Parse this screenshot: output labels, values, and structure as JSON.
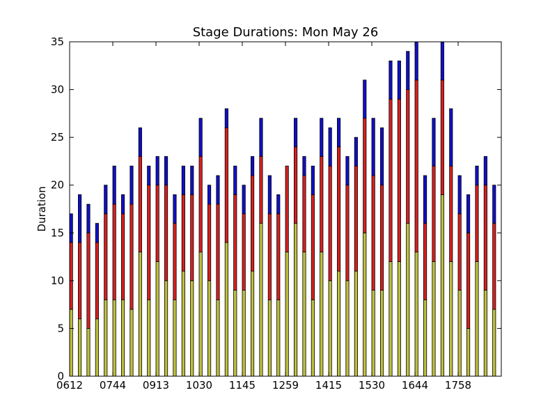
{
  "chart_data": {
    "type": "bar",
    "stacked": true,
    "title": "Stage Durations: Mon May 26",
    "xlabel": "",
    "ylabel": "Duration",
    "ylim": [
      0,
      35
    ],
    "yticks": [
      0,
      5,
      10,
      15,
      20,
      25,
      30,
      35
    ],
    "xtick_labels": [
      "0612",
      "0744",
      "0913",
      "1030",
      "1145",
      "1259",
      "1415",
      "1530",
      "1644",
      "1758"
    ],
    "xtick_every": 5,
    "grid": false,
    "colors": [
      "#bfbf3f",
      "#d62020",
      "#1010c8"
    ],
    "series": [
      {
        "values": [
          7,
          6,
          5,
          6,
          8,
          8,
          8,
          7,
          13,
          8,
          12,
          10,
          8,
          11,
          10,
          13,
          10,
          8,
          14,
          9,
          9,
          11,
          16,
          8,
          8,
          13,
          16,
          13,
          8,
          13,
          10,
          11,
          10,
          11,
          15,
          9,
          9,
          12,
          12,
          16,
          13,
          8,
          12,
          19,
          12,
          9,
          5,
          12,
          9,
          7
        ]
      },
      {
        "values": [
          7,
          8,
          10,
          8,
          9,
          10,
          9,
          11,
          10,
          12,
          8,
          10,
          8,
          8,
          9,
          10,
          8,
          10,
          12,
          10,
          8,
          10,
          7,
          9,
          9,
          9,
          8,
          8,
          11,
          10,
          12,
          13,
          10,
          11,
          12,
          12,
          11,
          17,
          17,
          14,
          18,
          8,
          10,
          12,
          10,
          8,
          10,
          8,
          11,
          9
        ]
      },
      {
        "values": [
          3,
          5,
          3,
          2,
          3,
          4,
          2,
          4,
          3,
          2,
          3,
          3,
          3,
          3,
          3,
          4,
          2,
          3,
          2,
          3,
          3,
          2,
          4,
          4,
          2,
          0,
          3,
          2,
          3,
          4,
          4,
          3,
          3,
          3,
          4,
          6,
          6,
          4,
          4,
          4,
          4,
          5,
          5,
          4,
          6,
          4,
          4,
          2,
          3,
          4
        ]
      }
    ]
  }
}
